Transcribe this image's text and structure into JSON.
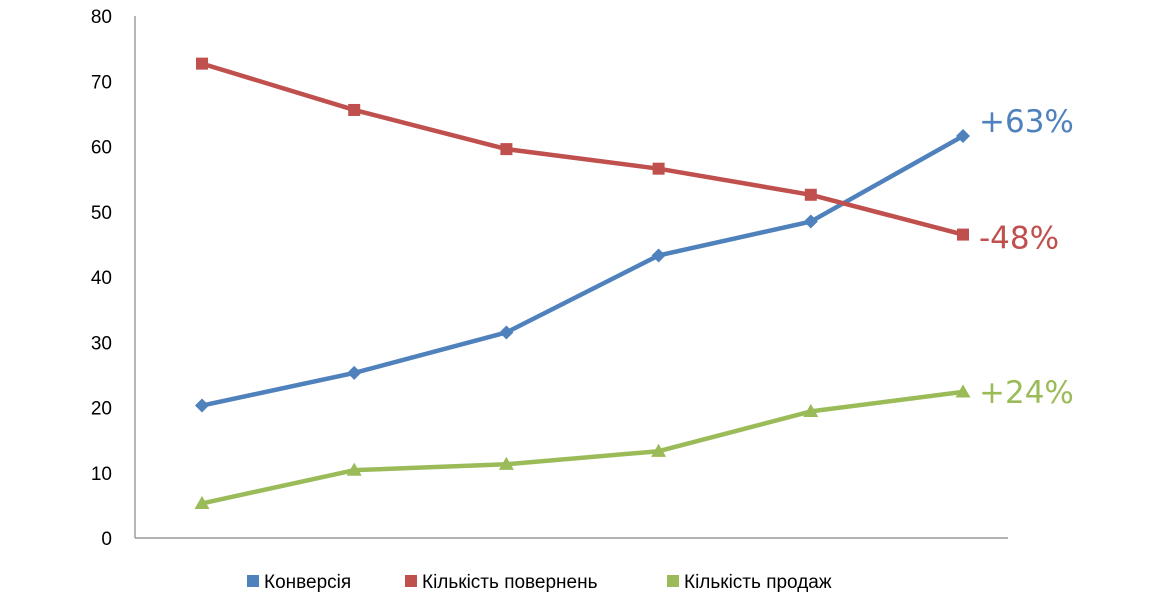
{
  "chart_data": {
    "type": "line",
    "x": [
      1,
      2,
      3,
      4,
      5,
      6
    ],
    "ylim": [
      0,
      80
    ],
    "yticks": [
      "0",
      "10",
      "20",
      "30",
      "40",
      "50",
      "60",
      "70",
      "80"
    ],
    "grid": false,
    "legend_position": "bottom",
    "series": [
      {
        "name": "Конверсія",
        "color": "#4F81BD",
        "marker": "diamond",
        "values": [
          20.3,
          25.3,
          31.5,
          43.3,
          48.5,
          61.6
        ],
        "end_label": "+63%"
      },
      {
        "name": "Кількість повернень",
        "color": "#C0504D",
        "marker": "square",
        "values": [
          72.7,
          65.6,
          59.6,
          56.6,
          52.6,
          46.5
        ],
        "end_label": "-48%"
      },
      {
        "name": "Кількість продаж",
        "color": "#9BBB59",
        "marker": "triangle",
        "values": [
          5.3,
          10.4,
          11.3,
          13.3,
          19.4,
          22.4
        ],
        "end_label": "+24%"
      }
    ]
  }
}
